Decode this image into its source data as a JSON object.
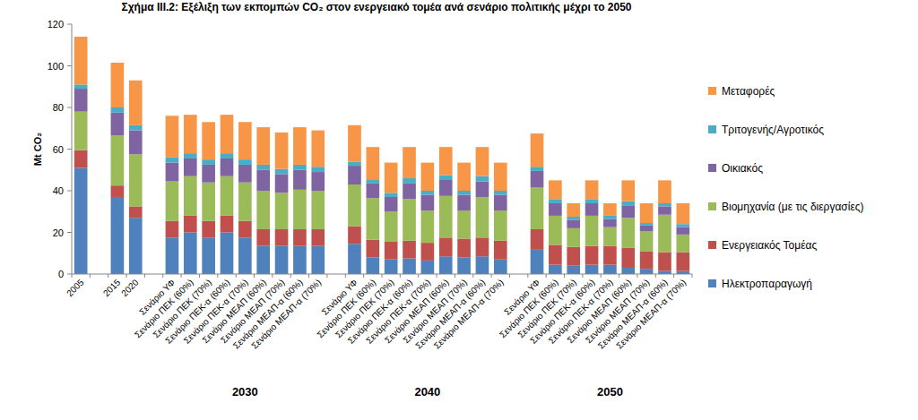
{
  "chart_data": {
    "type": "bar",
    "stacked": true,
    "grid": false,
    "legend": "right",
    "title": "Σχήμα ΙΙΙ.2: Εξέλιξη των εκπομπών CO₂ στον ενεργειακό τομέα ανά σενάριο πολιτικής μέχρι το 2050",
    "y_label": "Mt CO₂",
    "ylim": [
      0,
      120
    ],
    "yticks": [
      0,
      20,
      40,
      60,
      80,
      100,
      120
    ],
    "categories": [
      "2005",
      "2015",
      "2020",
      "Σενάριο ΥΦ",
      "Σενάριο ΠΕΚ (60%)",
      "Σενάριο ΠΕΚ (70%)",
      "Σενάριο ΠΕΚ-α (60%)",
      "Σενάριο ΠΕΚ-α (70%)",
      "Σενάριο ΜΕΑΠ (60%)",
      "Σενάριο ΜΕΑΠ (70%)",
      "Σενάριο ΜΕΑΠ-α (60%)",
      "Σενάριο ΜΕΑΠ-α (70%)",
      "Σενάριο ΥΦ",
      "Σενάριο ΠΕΚ (60%)",
      "Σενάριο ΠΕΚ (70%)",
      "Σενάριο ΠΕΚ-α (60%)",
      "Σενάριο ΠΕΚ-α (70%)",
      "Σενάριο ΜΕΑΠ (60%)",
      "Σενάριο ΜΕΑΠ (70%)",
      "Σενάριο ΜΕΑΠ-α (60%)",
      "Σενάριο ΜΕΑΠ-α (70%)",
      "Σενάριο ΥΦ",
      "Σενάριο ΠΕΚ (60%)",
      "Σενάριο ΠΕΚ (70%)",
      "Σενάριο ΠΕΚ-α (60%)",
      "Σενάριο ΠΕΚ-α (70%)",
      "Σενάριο ΜΕΑΠ (60%)",
      "Σενάριο ΜΕΑΠ (70%)",
      "Σενάριο ΜΕΑΠ-α (60%)",
      "Σενάριο ΜΕΑΠ-α (70%)"
    ],
    "x_groups": [
      {
        "label": null,
        "count": 1
      },
      {
        "label": null,
        "count": 2
      },
      {
        "label": "2030",
        "count": 9
      },
      {
        "label": "2040",
        "count": 9
      },
      {
        "label": "2050",
        "count": 9
      }
    ],
    "series": [
      {
        "name": "Ηλεκτροπαραγωγή",
        "color": "#4f81bd",
        "values": [
          51,
          37,
          27,
          17.5,
          20,
          17.5,
          20,
          17.5,
          13.5,
          13.5,
          13.5,
          13.5,
          14.5,
          8,
          7,
          7.5,
          6.5,
          8.5,
          8,
          8.5,
          7,
          12,
          4.5,
          4,
          4.5,
          4.5,
          3,
          2.5,
          1.5,
          1.5
        ]
      },
      {
        "name": "Ενεργειακός Τομέας",
        "color": "#c0504d",
        "values": [
          8.5,
          5.5,
          5.5,
          8,
          8,
          8,
          8,
          8,
          8,
          8,
          8,
          8,
          8.5,
          8.5,
          8.5,
          8.5,
          8.5,
          9,
          9,
          9,
          9,
          9.5,
          9.5,
          9,
          9,
          9,
          9.5,
          8.5,
          9,
          9
        ]
      },
      {
        "name": "Βιομηχανία (με τις διεργασίες)",
        "color": "#9bbb59",
        "values": [
          18.5,
          24,
          25,
          19,
          19,
          18.5,
          19,
          18.5,
          18.5,
          17.5,
          19,
          18.5,
          20,
          20,
          14.5,
          20,
          15.5,
          20,
          13.5,
          19.5,
          14.5,
          20,
          14,
          9,
          14.5,
          9,
          14.5,
          9.5,
          18,
          8.5
        ]
      },
      {
        "name": "Οικιακός",
        "color": "#8064a2",
        "values": [
          11,
          11,
          11.5,
          9,
          8.5,
          8.5,
          8.5,
          8.5,
          10,
          9,
          9.5,
          9,
          9,
          7,
          7,
          7.5,
          7.5,
          8,
          7.5,
          7.5,
          7.5,
          8,
          6,
          4,
          6,
          4,
          6,
          3,
          4,
          3.5
        ]
      },
      {
        "name": "Τριτογενής/Αγροτικός",
        "color": "#4bacc6",
        "values": [
          2,
          2.5,
          2.5,
          2.5,
          2.5,
          2.5,
          2.5,
          2.5,
          2.5,
          2.5,
          2.5,
          2.5,
          2,
          2,
          2,
          2.5,
          2,
          2,
          2,
          2.5,
          2,
          2,
          2,
          1.5,
          2,
          1.5,
          2,
          1,
          1.5,
          1.5
        ]
      },
      {
        "name": "Μεταφορές",
        "color": "#f79646",
        "values": [
          23,
          21.5,
          21.5,
          20,
          18.5,
          18,
          18.5,
          18,
          18,
          17.5,
          18,
          17.5,
          17.5,
          15.5,
          14.5,
          15,
          13.5,
          13.5,
          13.5,
          14,
          13.5,
          16,
          9,
          6.5,
          9,
          6,
          10,
          9.5,
          11,
          10
        ]
      }
    ]
  }
}
